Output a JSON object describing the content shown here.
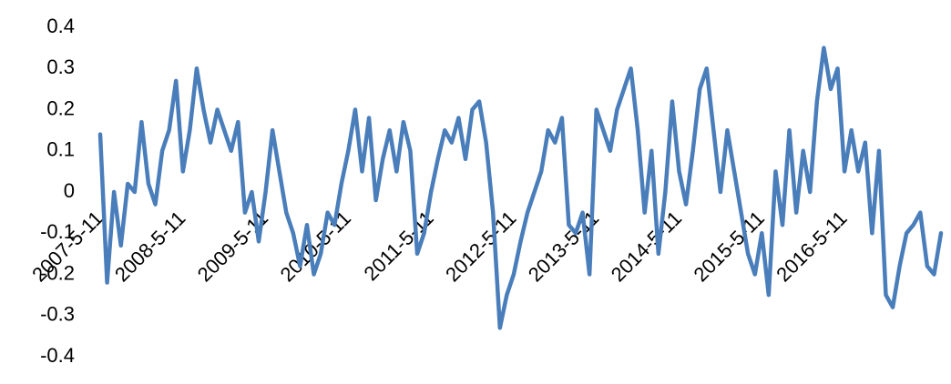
{
  "chart_data": {
    "type": "line",
    "categories": [
      "2007-5-11",
      null,
      null,
      null,
      null,
      null,
      null,
      null,
      null,
      null,
      null,
      null,
      "2008-5-11",
      null,
      null,
      null,
      null,
      null,
      null,
      null,
      null,
      null,
      null,
      null,
      "2009-5-11",
      null,
      null,
      null,
      null,
      null,
      null,
      null,
      null,
      null,
      null,
      null,
      "2010-5-11",
      null,
      null,
      null,
      null,
      null,
      null,
      null,
      null,
      null,
      null,
      null,
      "2011-5-11",
      null,
      null,
      null,
      null,
      null,
      null,
      null,
      null,
      null,
      null,
      null,
      "2012-5-11",
      null,
      null,
      null,
      null,
      null,
      null,
      null,
      null,
      null,
      null,
      null,
      "2013-5-11",
      null,
      null,
      null,
      null,
      null,
      null,
      null,
      null,
      null,
      null,
      null,
      "2014-5-11",
      null,
      null,
      null,
      null,
      null,
      null,
      null,
      null,
      null,
      null,
      null,
      "2015-5-11",
      null,
      null,
      null,
      null,
      null,
      null,
      null,
      null,
      null,
      null,
      null,
      "2016-5-11",
      null,
      null,
      null,
      null,
      null,
      null,
      null,
      null,
      null,
      null,
      null,
      null,
      null,
      null
    ],
    "values": [
      0.14,
      -0.22,
      0.0,
      -0.13,
      0.02,
      0.0,
      0.17,
      0.02,
      -0.03,
      0.1,
      0.15,
      0.27,
      0.05,
      0.15,
      0.3,
      0.2,
      0.12,
      0.2,
      0.15,
      0.1,
      0.17,
      -0.05,
      0.0,
      -0.12,
      0.0,
      0.15,
      0.05,
      -0.05,
      -0.1,
      -0.18,
      -0.08,
      -0.2,
      -0.15,
      -0.05,
      -0.08,
      0.02,
      0.1,
      0.2,
      0.05,
      0.18,
      -0.02,
      0.08,
      0.15,
      0.05,
      0.17,
      0.1,
      -0.15,
      -0.1,
      0.0,
      0.08,
      0.15,
      0.12,
      0.18,
      0.08,
      0.2,
      0.22,
      0.12,
      -0.05,
      -0.33,
      -0.25,
      -0.2,
      -0.12,
      -0.05,
      0.0,
      0.05,
      0.15,
      0.12,
      0.18,
      -0.08,
      -0.1,
      -0.05,
      -0.2,
      0.2,
      0.15,
      0.1,
      0.2,
      0.25,
      0.3,
      0.15,
      -0.05,
      0.1,
      -0.15,
      0.0,
      0.22,
      0.05,
      -0.03,
      0.1,
      0.25,
      0.3,
      0.15,
      0.0,
      0.15,
      0.05,
      -0.05,
      -0.15,
      -0.2,
      -0.1,
      -0.25,
      0.05,
      -0.08,
      0.15,
      -0.05,
      0.1,
      0.0,
      0.22,
      0.35,
      0.25,
      0.3,
      0.05,
      0.15,
      0.05,
      0.12,
      -0.1,
      0.1,
      -0.25,
      -0.28,
      -0.18,
      -0.1,
      -0.08,
      -0.05,
      -0.18,
      -0.2,
      -0.1
    ],
    "color": "#4a7ebb",
    "ylim": [
      -0.4,
      0.4
    ],
    "yticks": [
      0.4,
      0.3,
      0.2,
      0.1,
      0,
      -0.1,
      -0.2,
      -0.3,
      -0.4
    ]
  }
}
